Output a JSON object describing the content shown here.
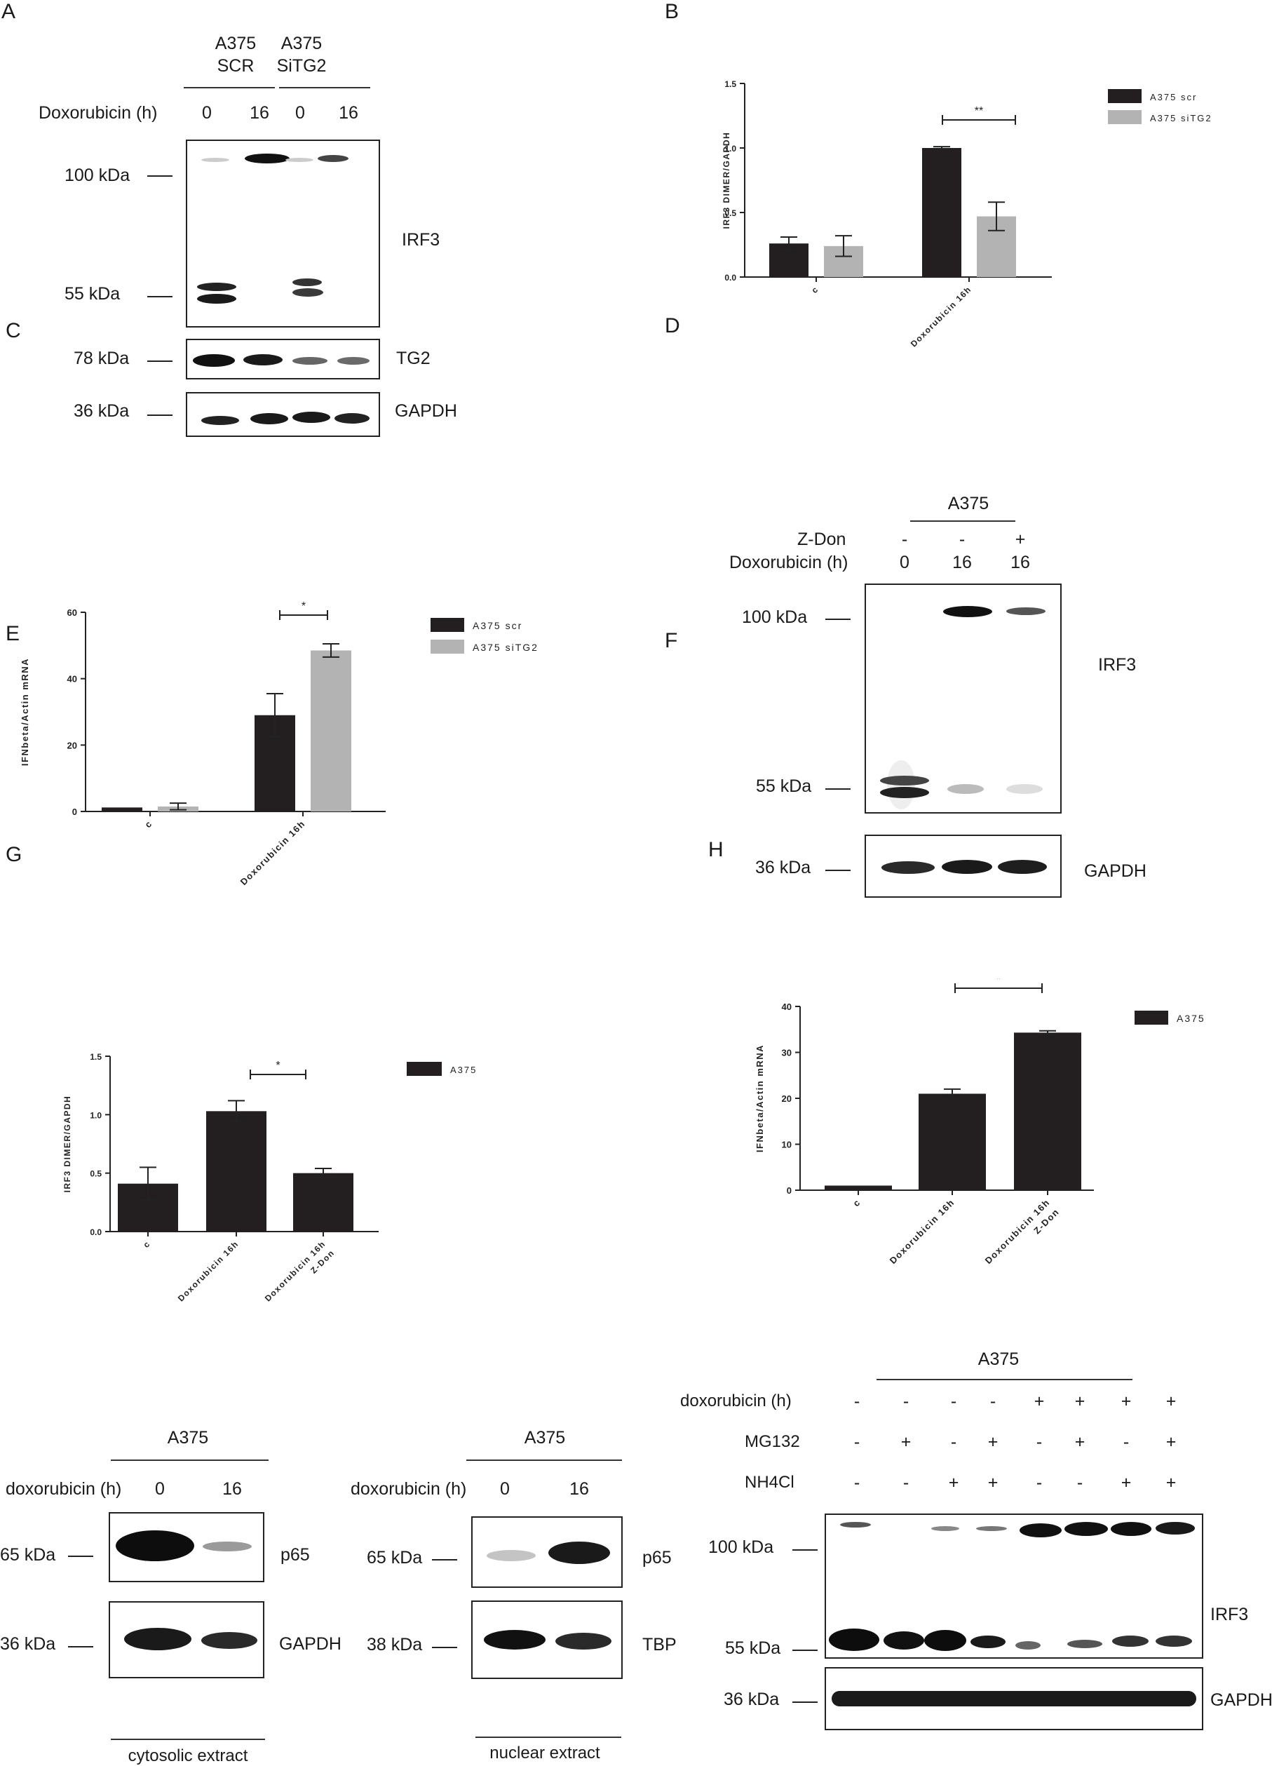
{
  "panels": [
    "A",
    "B",
    "C",
    "D",
    "E",
    "F",
    "G",
    "H"
  ],
  "panelA": {
    "groups": [
      "A375\nSCR",
      "A375\nSiTG2"
    ],
    "group1_l1": "A375",
    "group1_l2": "SCR",
    "group2_l1": "A375",
    "group2_l2": "SiTG2",
    "treatment_label": "Doxorubicin (h)",
    "lanes": [
      "0",
      "16",
      "0",
      "16"
    ],
    "markers": {
      "m100": "100 kDa",
      "m55": "55 kDa",
      "m78": "78 kDa",
      "m36": "36 kDa"
    },
    "proteins": {
      "irf3": "IRF3",
      "tg2": "TG2",
      "gapdh": "GAPDH"
    }
  },
  "panelD": {
    "group": "A375",
    "row1_label": "Z-Don",
    "row1": [
      "-",
      "-",
      "+"
    ],
    "row2_label": "Doxorubicin (h)",
    "row2": [
      "0",
      "16",
      "16"
    ],
    "markers": {
      "m100": "100 kDa",
      "m55": "55 kDa",
      "m36": "36 kDa"
    },
    "proteins": {
      "irf3": "IRF3",
      "gapdh": "GAPDH"
    }
  },
  "panelG": {
    "left": {
      "group": "A375",
      "treatment_label": "doxorubicin (h)",
      "lanes": [
        "0",
        "16"
      ],
      "markers": {
        "m65": "65 kDa",
        "m36": "36 kDa"
      },
      "proteins": {
        "p65": "p65",
        "loading": "GAPDH"
      },
      "caption": "cytosolic extract"
    },
    "right": {
      "group": "A375",
      "treatment_label": "doxorubicin (h)",
      "lanes": [
        "0",
        "16"
      ],
      "markers": {
        "m65": "65 kDa",
        "m38": "38 kDa"
      },
      "proteins": {
        "p65": "p65",
        "loading": "TBP"
      },
      "caption": "nuclear extract"
    }
  },
  "panelH": {
    "group": "A375",
    "rows": [
      {
        "label": "doxorubicin (h)",
        "values": [
          "-",
          "-",
          "-",
          "-",
          "+",
          "+",
          "+",
          "+"
        ]
      },
      {
        "label": "MG132",
        "values": [
          "-",
          "+",
          "-",
          "+",
          "-",
          "+",
          "-",
          "+"
        ]
      },
      {
        "label": "NH4Cl",
        "values": [
          "-",
          "-",
          "+",
          "+",
          "-",
          "-",
          "+",
          "+"
        ]
      }
    ],
    "markers": {
      "m100": "100 kDa",
      "m55": "55 kDa",
      "m36": "36 kDa"
    },
    "proteins": {
      "irf3": "IRF3",
      "gapdh": "GAPDH"
    }
  },
  "chart_data": [
    {
      "panel": "B",
      "type": "bar",
      "categories": [
        "c",
        "Doxorubicin 16h"
      ],
      "series": [
        {
          "name": "A375 scr",
          "values": [
            0.26,
            1.0
          ],
          "errors": [
            0.05,
            0.01
          ],
          "color": "#231f20"
        },
        {
          "name": "A375 siTG2",
          "values": [
            0.24,
            0.47
          ],
          "errors": [
            0.08,
            0.11
          ],
          "color": "#b3b3b3"
        }
      ],
      "ylabel": "IRF3 DIMER/GAPDH",
      "ylim": [
        0,
        1.5
      ],
      "yticks": [
        "0.0",
        "0.5",
        "1.0",
        "1.5"
      ],
      "significance": [
        {
          "category": "Doxorubicin 16h",
          "label": "**"
        }
      ],
      "legend": "top-right"
    },
    {
      "panel": "C",
      "type": "bar",
      "categories": [
        "c",
        "Doxorubicin 16h"
      ],
      "series": [
        {
          "name": "A375 scr",
          "values": [
            1.2,
            29
          ],
          "errors": [
            0,
            6.5
          ],
          "color": "#231f20"
        },
        {
          "name": "A375 siTG2",
          "values": [
            1.5,
            48.5
          ],
          "errors": [
            1,
            2
          ],
          "color": "#b3b3b3"
        }
      ],
      "ylabel": "IFNbeta/Actin mRNA",
      "ylim": [
        0,
        60
      ],
      "yticks": [
        "0",
        "20",
        "40",
        "60"
      ],
      "significance": [
        {
          "category": "Doxorubicin 16h",
          "label": "*"
        }
      ],
      "legend": "top-right"
    },
    {
      "panel": "E",
      "type": "bar",
      "categories": [
        "c",
        "Doxorubicin 16h",
        "Doxorubicin 16h Z-Don"
      ],
      "series": [
        {
          "name": "A375",
          "values": [
            0.41,
            1.03,
            0.5
          ],
          "errors": [
            0.14,
            0.09,
            0.04
          ],
          "color": "#231f20"
        }
      ],
      "ylabel": "IRF3 DIMER/GAPDH",
      "ylim": [
        0,
        1.5
      ],
      "yticks": [
        "0.0",
        "0.5",
        "1.0",
        "1.5"
      ],
      "significance": [
        {
          "from": 1,
          "to": 2,
          "label": "*"
        }
      ],
      "legend": "top-right"
    },
    {
      "panel": "F",
      "type": "bar",
      "categories": [
        "c",
        "Doxorubicin 16h",
        "Doxorubicin 16h Z-Don"
      ],
      "series": [
        {
          "name": "A375",
          "values": [
            1,
            21,
            34.3
          ],
          "errors": [
            0,
            1,
            0.4
          ],
          "color": "#231f20"
        }
      ],
      "ylabel": "IFNbeta/Actin mRNA",
      "ylim": [
        0,
        40
      ],
      "yticks": [
        "0",
        "10",
        "20",
        "30",
        "40"
      ],
      "significance": [
        {
          "from": 1,
          "to": 2,
          "label": "*"
        }
      ],
      "legend": "top-right"
    }
  ]
}
